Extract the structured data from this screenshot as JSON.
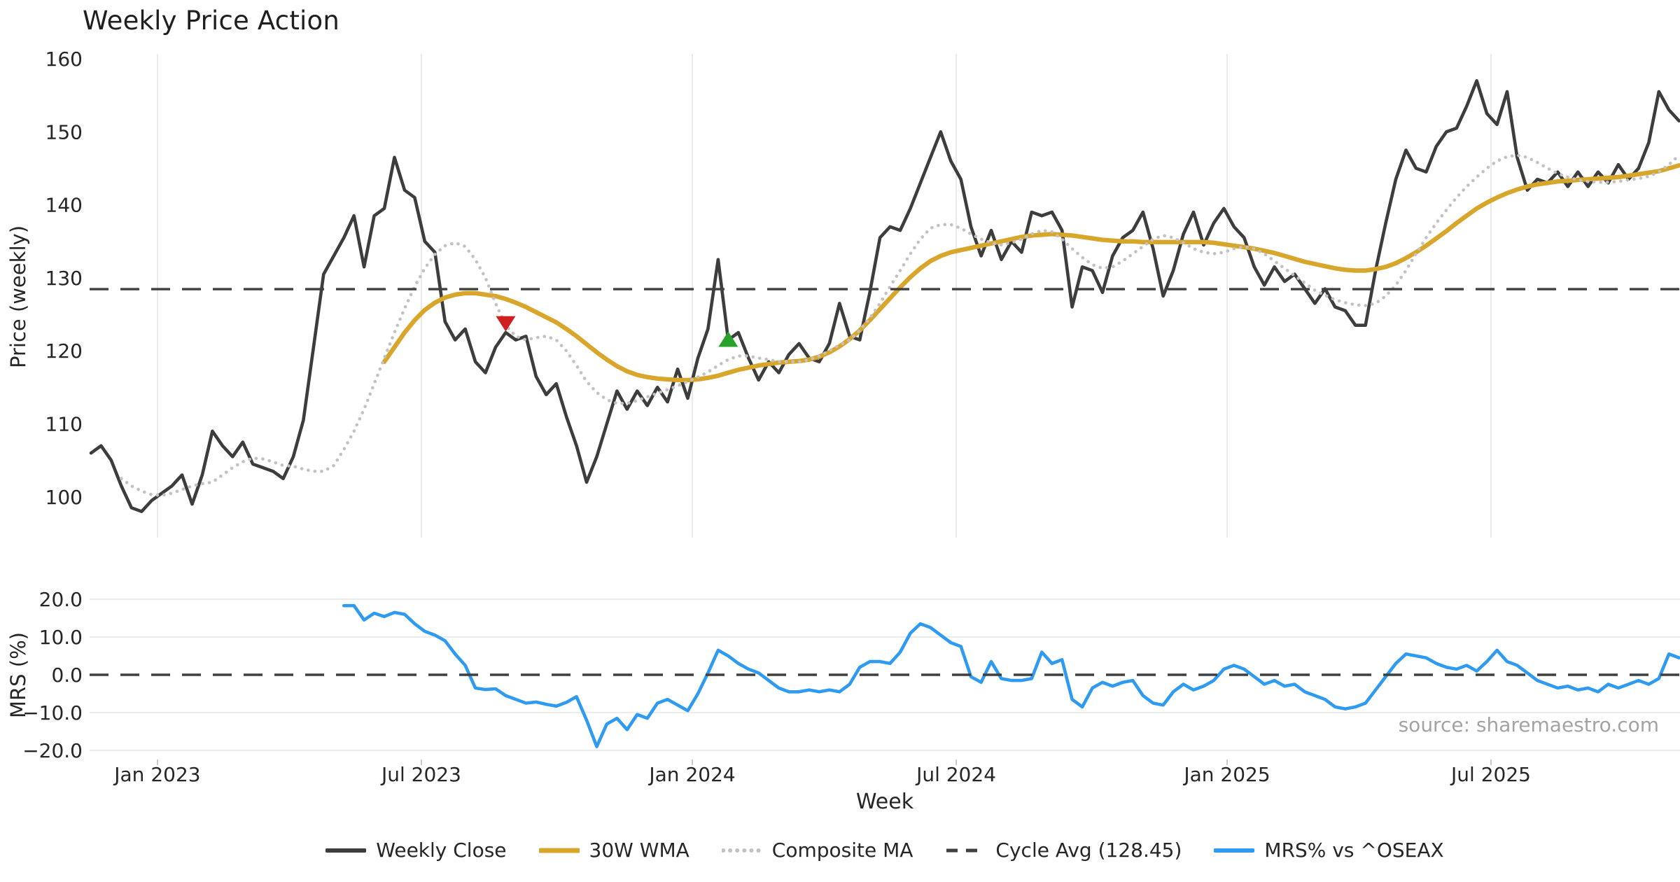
{
  "title": "Weekly Price Action",
  "source_note": "source: sharemaestro.com",
  "colors": {
    "close": "#3d3d3d",
    "wma": "#d7a62b",
    "composite": "#c2c2c2",
    "cycle_avg": "#3f3f3f",
    "mrs": "#2e9af0",
    "grid": "#e9e9e9",
    "mrs_grid": "#ececec",
    "tick_text": "#262626",
    "marker_down": "#cf1f1f",
    "marker_up": "#28a228"
  },
  "axes": {
    "price_label": "Price (weekly)",
    "mrs_label": "MRS (%)",
    "week_label": "Week",
    "price_ticks": [
      160,
      150,
      140,
      130,
      120,
      110,
      100
    ],
    "mrs_ticks": [
      20,
      10,
      0,
      -10,
      -20
    ],
    "x_ticks": [
      {
        "label": "Jan 2023",
        "week": 6.57
      },
      {
        "label": "Jul 2023",
        "week": 32.66
      },
      {
        "label": "Jan 2024",
        "week": 59.45
      },
      {
        "label": "Jul 2024",
        "week": 85.54
      },
      {
        "label": "Jan 2025",
        "week": 112.32
      },
      {
        "label": "Jul 2025",
        "week": 138.41
      }
    ]
  },
  "legend": {
    "position": "lower center",
    "items": [
      {
        "label": "Weekly Close",
        "series": "close"
      },
      {
        "label": "30W WMA",
        "series": "wma"
      },
      {
        "label": "Composite MA",
        "series": "composite"
      },
      {
        "label": "Cycle Avg (128.45)",
        "series": "cycle_avg"
      },
      {
        "label": "MRS% vs ^OSEAX",
        "series": "mrs"
      }
    ]
  },
  "chart_data": [
    {
      "panel": "price",
      "type": "line",
      "name": "Weekly Close",
      "series": "close",
      "start_week": 0,
      "values": [
        106,
        107,
        105,
        101.5,
        98.5,
        98,
        99.5,
        100.5,
        101.5,
        103,
        99,
        103,
        109,
        107,
        105.5,
        107.5,
        104.5,
        104,
        103.5,
        102.5,
        105.5,
        110.5,
        120.5,
        130.5,
        133,
        135.5,
        138.5,
        131.5,
        138.5,
        139.5,
        146.5,
        142,
        141,
        135,
        133.5,
        124,
        121.5,
        123,
        118.5,
        117,
        120.5,
        122.5,
        121.5,
        122,
        116.5,
        114,
        115.5,
        111,
        107,
        102,
        105.5,
        110,
        114.5,
        112,
        114.5,
        112.5,
        115,
        113,
        117.5,
        113.5,
        119,
        123,
        132.5,
        121.5,
        122.5,
        119,
        116,
        118.5,
        117,
        119.5,
        121,
        119,
        118.5,
        121,
        126.5,
        122,
        121.5,
        128,
        135.5,
        137,
        136.5,
        139.5,
        143,
        146.5,
        150,
        146,
        143.5,
        137,
        133,
        136.5,
        132.5,
        135,
        133.5,
        139,
        138.5,
        139,
        136.5,
        126,
        131.5,
        131,
        128,
        133,
        135.5,
        136.5,
        139,
        134,
        127.5,
        131,
        136,
        139,
        134.5,
        137.5,
        139.5,
        137,
        135.5,
        131.5,
        129,
        131.5,
        129.5,
        130.5,
        128.5,
        126.5,
        128.5,
        126,
        125.5,
        123.5,
        123.5,
        131,
        137.5,
        143.5,
        147.5,
        145,
        144.5,
        148,
        150,
        150.5,
        153.5,
        157,
        152.5,
        151,
        155.5,
        146.5,
        142,
        143.5,
        143,
        144.5,
        142.5,
        144.5,
        142.5,
        144.5,
        143,
        145.5,
        143.5,
        145,
        148.5,
        155.5,
        153,
        151.5
      ]
    },
    {
      "panel": "price",
      "type": "line",
      "name": "30W WMA",
      "series": "wma",
      "start_week": 29,
      "values": [
        118.5,
        120.5,
        122.5,
        124.2,
        125.6,
        126.6,
        127.3,
        127.7,
        127.9,
        127.9,
        127.7,
        127.5,
        127.1,
        126.6,
        126,
        125.3,
        124.6,
        123.9,
        123,
        122,
        120.9,
        119.8,
        118.8,
        117.9,
        117.2,
        116.7,
        116.4,
        116.2,
        116.1,
        116,
        116,
        116.1,
        116.3,
        116.6,
        117,
        117.4,
        117.7,
        118,
        118.2,
        118.4,
        118.5,
        118.6,
        118.8,
        119.2,
        119.8,
        120.6,
        121.6,
        122.8,
        124.2,
        125.7,
        127.2,
        128.7,
        130.1,
        131.3,
        132.3,
        133,
        133.5,
        133.8,
        134.1,
        134.4,
        134.7,
        135,
        135.3,
        135.6,
        135.8,
        135.9,
        136,
        135.9,
        135.8,
        135.6,
        135.4,
        135.2,
        135.1,
        135,
        135,
        134.9,
        134.9,
        134.9,
        134.9,
        134.9,
        134.9,
        134.9,
        134.8,
        134.6,
        134.4,
        134.2,
        134,
        133.7,
        133.4,
        133,
        132.6,
        132.2,
        131.9,
        131.6,
        131.3,
        131.1,
        131,
        131,
        131.2,
        131.5,
        132,
        132.7,
        133.5,
        134.4,
        135.4,
        136.4,
        137.5,
        138.5,
        139.5,
        140.3,
        141,
        141.6,
        142.1,
        142.5,
        142.8,
        143,
        143.2,
        143.3,
        143.4,
        143.5,
        143.6,
        143.7,
        143.8,
        144,
        144.2,
        144.4,
        144.6,
        145,
        145.4
      ]
    },
    {
      "panel": "price",
      "type": "line",
      "name": "Composite MA",
      "series": "composite",
      "start_week": 3,
      "values": [
        102.5,
        101.5,
        100.8,
        100.3,
        100.2,
        100.5,
        101,
        101.5,
        101.8,
        102,
        103,
        104,
        104.8,
        105.3,
        105.2,
        104.8,
        104.3,
        104.2,
        103.8,
        103.5,
        103.5,
        104.3,
        106.5,
        109,
        112,
        115.5,
        119,
        122.5,
        125.8,
        128.8,
        131.3,
        133.2,
        134.4,
        134.8,
        134.3,
        132.5,
        130,
        126.5,
        123.5,
        122,
        121.5,
        121.8,
        122,
        121.5,
        120,
        118,
        115.8,
        114.3,
        113.3,
        112.8,
        112.8,
        113.2,
        113.7,
        114.2,
        114.7,
        115.2,
        115.8,
        116.4,
        117.1,
        118,
        118.8,
        119.3,
        119.3,
        119,
        118.8,
        118.5,
        118.5,
        118.5,
        118.8,
        119.3,
        120,
        120.8,
        121.5,
        122.8,
        124.5,
        126.5,
        128.8,
        131,
        133.3,
        135.3,
        136.8,
        137.3,
        137.3,
        136.8,
        136,
        135.3,
        134.8,
        134.5,
        134.8,
        135.3,
        136,
        136.5,
        136.3,
        135.3,
        134,
        132.8,
        131.8,
        131.3,
        131.5,
        132.3,
        133.3,
        134.3,
        135.3,
        135.8,
        135.5,
        134.8,
        134,
        133.5,
        133.3,
        133.5,
        134,
        134.3,
        134,
        133.3,
        132.3,
        131.3,
        130.3,
        129.3,
        128.3,
        127.6,
        127,
        126.6,
        126.3,
        126.2,
        126.5,
        127.5,
        129,
        131,
        133.3,
        135.5,
        137.5,
        139.3,
        141,
        142.5,
        143.8,
        145,
        146,
        146.6,
        146.8,
        146.5,
        145.8,
        145,
        144.3,
        143.8,
        143.4,
        143.2,
        143.1,
        143.1,
        143.2,
        143.4,
        143.6,
        143.9,
        144.5,
        145.5,
        146.8
      ]
    },
    {
      "panel": "price",
      "type": "hline",
      "name": "Cycle Avg",
      "series": "cycle_avg",
      "value": 128.45
    },
    {
      "panel": "price",
      "type": "marker",
      "shape": "triangle-down",
      "week": 41,
      "price": 123.8,
      "color_key": "marker_down",
      "name": "sell-signal"
    },
    {
      "panel": "price",
      "type": "marker",
      "shape": "triangle-up",
      "week": 63,
      "price": 121.5,
      "color_key": "marker_up",
      "name": "buy-signal"
    },
    {
      "panel": "mrs",
      "type": "line",
      "name": "MRS% vs ^OSEAX",
      "series": "mrs",
      "start_week": 25,
      "values": [
        18.3,
        18.3,
        14.5,
        16.3,
        15.4,
        16.5,
        16,
        13.5,
        11.5,
        10.5,
        9,
        5.5,
        2.5,
        -3.5,
        -3.9,
        -3.7,
        -5.5,
        -6.5,
        -7.5,
        -7.2,
        -7.8,
        -8.3,
        -7.3,
        -5.8,
        -12,
        -19,
        -13,
        -11.5,
        -14.5,
        -10.5,
        -11.5,
        -7.5,
        -6.5,
        -8,
        -9.5,
        -5,
        0.5,
        6.5,
        5,
        3,
        1.5,
        0.5,
        -1.5,
        -3.5,
        -4.5,
        -4.5,
        -4,
        -4.5,
        -4,
        -4.5,
        -2.5,
        2,
        3.5,
        3.5,
        3,
        6,
        11,
        13.5,
        12.5,
        10.5,
        8.5,
        7.5,
        -0.5,
        -2,
        3.5,
        -1,
        -1.5,
        -1.5,
        -1,
        6,
        3,
        4,
        -6.5,
        -8.5,
        -3.5,
        -2,
        -3,
        -2,
        -1.5,
        -5.5,
        -7.5,
        -8,
        -4.5,
        -2.5,
        -4,
        -3,
        -1.5,
        1.5,
        2.5,
        1.5,
        -0.5,
        -2.5,
        -1.5,
        -3,
        -2.5,
        -4.5,
        -5.5,
        -6.5,
        -8.5,
        -9,
        -8.5,
        -7.5,
        -4,
        -0.5,
        3,
        5.5,
        5,
        4.5,
        3,
        2,
        1.5,
        2.5,
        1,
        3.5,
        6.5,
        3.5,
        2.5,
        0.5,
        -1.5,
        -2.5,
        -3.5,
        -3,
        -4,
        -3.5,
        -4.5,
        -2.5,
        -3.5,
        -2.5,
        -1.5,
        -2.5,
        -1,
        5.5,
        4.5
      ]
    },
    {
      "panel": "mrs",
      "type": "hline",
      "name": "Zero Line",
      "series": "cycle_avg",
      "value": 0
    }
  ],
  "panels": {
    "price": {
      "ylim_ticks": [
        100,
        160
      ],
      "grid": "vertical"
    },
    "mrs": {
      "ylim_ticks": [
        -20,
        20
      ],
      "grid": "horizontal"
    }
  }
}
